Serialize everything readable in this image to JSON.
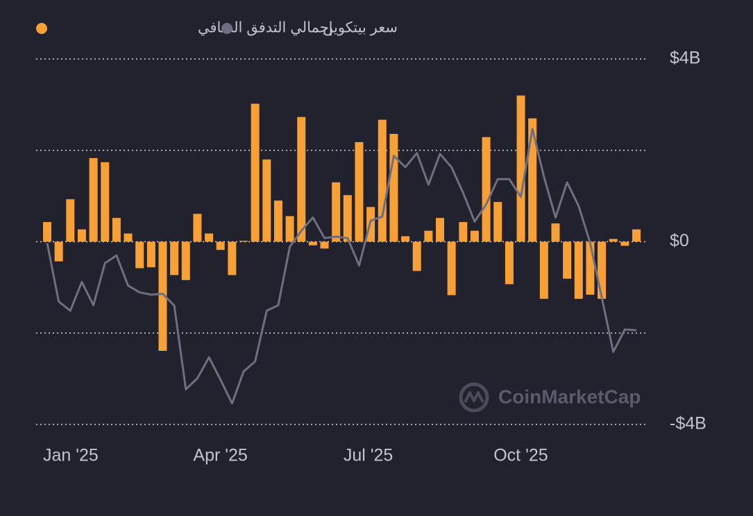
{
  "chart_data": {
    "type": "bar",
    "legend": [
      "إجمالي التدفق الصافي",
      "سعر بيتكوين"
    ],
    "watermark": "CoinMarketCap",
    "categories": [
      "Jan '25",
      null,
      null,
      null,
      null,
      null,
      null,
      null,
      null,
      null,
      null,
      null,
      null,
      "Apr '25",
      null,
      null,
      null,
      null,
      null,
      null,
      null,
      null,
      null,
      null,
      null,
      null,
      "Jul '25",
      null,
      null,
      null,
      null,
      null,
      null,
      null,
      null,
      null,
      null,
      null,
      null,
      "Oct '25",
      null,
      null,
      null,
      null,
      null,
      null,
      null,
      null,
      null,
      null,
      null,
      null
    ],
    "series": [
      {
        "name": "إجمالي التدفق الصافي",
        "type": "bar",
        "color": "#f7a035",
        "values": [
          0.43,
          -0.43,
          0.93,
          0.27,
          1.83,
          1.74,
          0.52,
          0.18,
          -0.58,
          -0.56,
          -2.39,
          -0.73,
          -0.84,
          0.61,
          0.18,
          -0.18,
          -0.73,
          0.02,
          3.02,
          1.8,
          0.9,
          0.56,
          2.73,
          -0.08,
          -0.15,
          1.3,
          1.02,
          2.18,
          0.76,
          2.67,
          2.36,
          0.12,
          -0.64,
          0.24,
          0.52,
          -1.17,
          0.43,
          0.24,
          2.29,
          0.87,
          -0.93,
          3.2,
          2.7,
          -1.25,
          0.4,
          -0.81,
          -1.25,
          -1.16,
          -1.25,
          0.06,
          -0.09,
          0.27
        ]
      },
      {
        "name": "سعر بيتكوين",
        "type": "line",
        "color": "#6e6f80",
        "values": [
          -0.03,
          -1.31,
          -1.51,
          -0.88,
          -1.39,
          -0.47,
          -0.3,
          -0.96,
          -1.11,
          -1.16,
          -1.14,
          -1.4,
          -3.23,
          -2.99,
          -2.53,
          -3.02,
          -3.54,
          -2.84,
          -2.62,
          -1.51,
          -1.39,
          -0.11,
          0.24,
          0.53,
          0.08,
          0.11,
          0.08,
          -0.52,
          0.46,
          0.55,
          1.88,
          1.63,
          1.94,
          1.25,
          1.92,
          1.63,
          1.07,
          0.44,
          0.82,
          1.37,
          1.37,
          0.98,
          2.47,
          1.42,
          0.53,
          1.3,
          0.78,
          -0.03,
          -1.22,
          -2.41,
          -1.92,
          -1.94
        ]
      }
    ],
    "ylim": [
      -4,
      4
    ],
    "yticks": [
      {
        "value": 4,
        "label": "$4B"
      },
      {
        "value": 0,
        "label": "$0"
      },
      {
        "value": -4,
        "label": "-$4B"
      }
    ],
    "grid_lines": [
      4,
      2,
      0,
      -2,
      -4
    ],
    "grid": true
  }
}
